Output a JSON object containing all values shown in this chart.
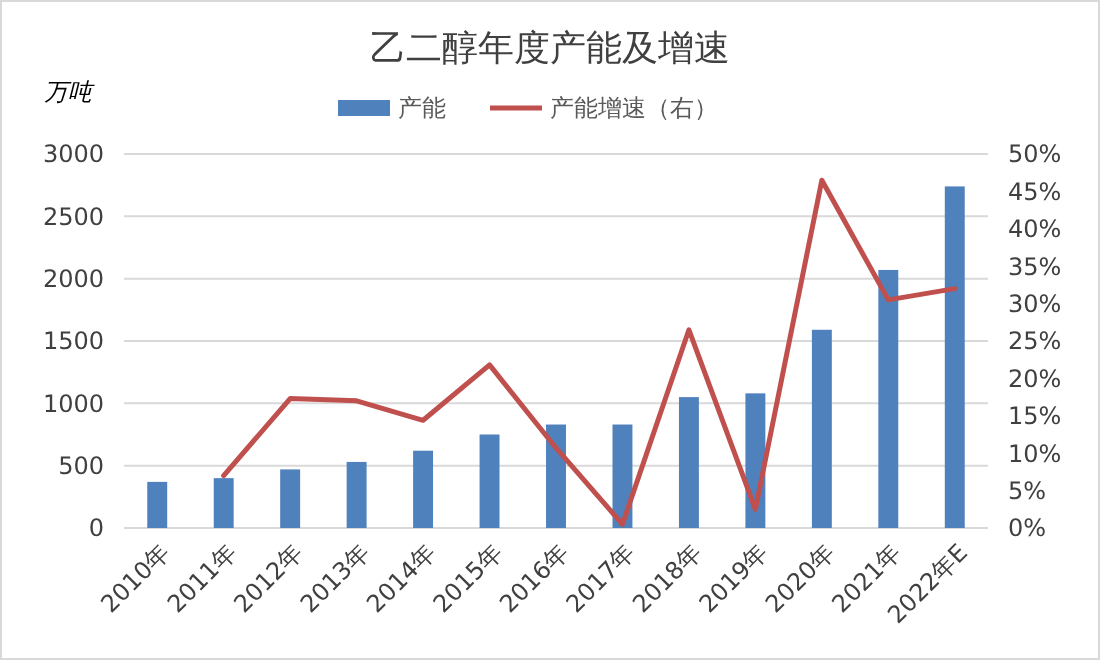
{
  "chart_data": {
    "type": "bar",
    "title": "乙二醇年度产能及增速",
    "ylabel": "万吨",
    "categories": [
      "2010年",
      "2011年",
      "2012年",
      "2013年",
      "2014年",
      "2015年",
      "2016年",
      "2017年",
      "2018年",
      "2019年",
      "2020年",
      "2021年",
      "2022年E"
    ],
    "series": [
      {
        "name": "产能",
        "color": "#4f81bd",
        "values": [
          370,
          400,
          470,
          530,
          620,
          750,
          830,
          830,
          1050,
          1080,
          1590,
          2070,
          2740
        ]
      },
      {
        "name": "产能增速（右）",
        "type": "line",
        "axis": "y2",
        "color": "#c0504d",
        "values": [
          null,
          7.0,
          17.3,
          17.0,
          14.4,
          21.8,
          10.7,
          0.5,
          26.5,
          2.5,
          46.5,
          30.5,
          32.0
        ]
      }
    ],
    "ylim": [
      0,
      3000
    ],
    "yticks": [
      0,
      500,
      1000,
      1500,
      2000,
      2500,
      3000
    ],
    "y2lim": [
      0,
      50
    ],
    "y2ticks": [
      {
        "value": 0,
        "label": "0%"
      },
      {
        "value": 5,
        "label": "5%"
      },
      {
        "value": 10,
        "label": "10%"
      },
      {
        "value": 15,
        "label": "15%"
      },
      {
        "value": 20,
        "label": "20%"
      },
      {
        "value": 25,
        "label": "25%"
      },
      {
        "value": 30,
        "label": "30%"
      },
      {
        "value": 35,
        "label": "35%"
      },
      {
        "value": 40,
        "label": "40%"
      },
      {
        "value": 45,
        "label": "45%"
      },
      {
        "value": 50,
        "label": "50%"
      }
    ],
    "grid": "y",
    "legend": "top",
    "marker": "none"
  }
}
